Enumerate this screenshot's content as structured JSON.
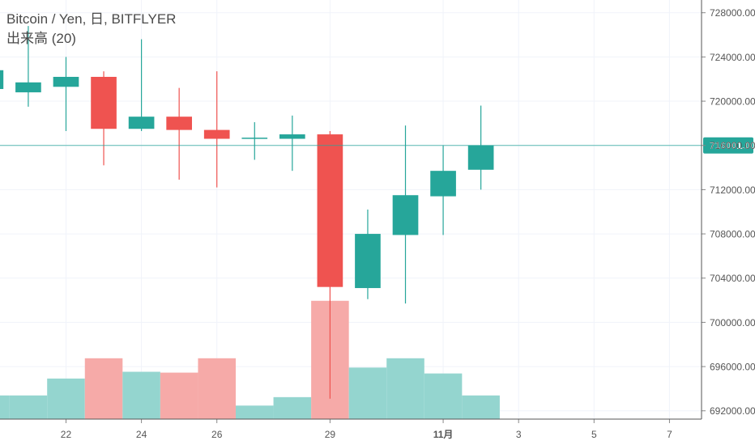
{
  "legend": {
    "symbol_line": "Bitcoin / Yen, 日, BITFLYER",
    "volume_line": "出来高 (20)"
  },
  "colors": {
    "up": "#26a69a",
    "down": "#ef5350",
    "up_volume": "#94d5cf",
    "down_volume": "#f6aaa8",
    "last_price": "#26a69a",
    "grid": "#f0f3fa",
    "axis_text": "#555555"
  },
  "chart_data": {
    "type": "candlestick",
    "title": "Bitcoin / Yen, 日, BITFLYER",
    "x_ticks": [
      {
        "day": 22,
        "label": "22"
      },
      {
        "day": 24,
        "label": "24"
      },
      {
        "day": 26,
        "label": "26"
      },
      {
        "day": 29,
        "label": "29"
      },
      {
        "day": 32,
        "label": "11月"
      },
      {
        "day": 34,
        "label": "3"
      },
      {
        "day": 36,
        "label": "5"
      },
      {
        "day": 38,
        "label": "7"
      }
    ],
    "y_ticks": [
      "728000.00",
      "724000.00",
      "720000.00",
      "716000.00",
      "712000.00",
      "708000.00",
      "704000.00",
      "700000.00",
      "696000.00",
      "692000.00"
    ],
    "y_range": [
      691250,
      729150
    ],
    "x_range": [
      20.25,
      38.85
    ],
    "last_price": {
      "value": 716001,
      "label": "716001.00"
    },
    "candles": [
      {
        "day": 20,
        "open": 721100,
        "high": 723800,
        "low": 716200,
        "close": 722800
      },
      {
        "day": 21,
        "open": 720800,
        "high": 726800,
        "low": 719500,
        "close": 721700
      },
      {
        "day": 22,
        "open": 721300,
        "high": 724000,
        "low": 717300,
        "close": 722200
      },
      {
        "day": 23,
        "open": 722200,
        "high": 722700,
        "low": 714200,
        "close": 717500
      },
      {
        "day": 24,
        "open": 717500,
        "high": 725600,
        "low": 717300,
        "close": 718600
      },
      {
        "day": 25,
        "open": 718600,
        "high": 721200,
        "low": 712900,
        "close": 717400
      },
      {
        "day": 26,
        "open": 717400,
        "high": 722700,
        "low": 712200,
        "close": 716600
      },
      {
        "day": 27,
        "open": 716600,
        "high": 718100,
        "low": 714700,
        "close": 716700
      },
      {
        "day": 28,
        "open": 716600,
        "high": 718700,
        "low": 713700,
        "close": 717000
      },
      {
        "day": 29,
        "open": 717000,
        "high": 717300,
        "low": 693100,
        "close": 703200
      },
      {
        "day": 30,
        "open": 703100,
        "high": 710200,
        "low": 702100,
        "close": 708000
      },
      {
        "day": 31,
        "open": 707900,
        "high": 717800,
        "low": 701700,
        "close": 711500
      },
      {
        "day": 32,
        "open": 711400,
        "high": 716000,
        "low": 707900,
        "close": 713700
      },
      {
        "day": 33,
        "open": 713800,
        "high": 719600,
        "low": 712000,
        "close": 716000
      }
    ],
    "volume": [
      {
        "day": 20,
        "value": 2.8,
        "dir": "up"
      },
      {
        "day": 21,
        "value": 2.8,
        "dir": "up"
      },
      {
        "day": 22,
        "value": 4.8,
        "dir": "up"
      },
      {
        "day": 23,
        "value": 7.2,
        "dir": "down"
      },
      {
        "day": 24,
        "value": 5.6,
        "dir": "up"
      },
      {
        "day": 25,
        "value": 5.5,
        "dir": "down"
      },
      {
        "day": 26,
        "value": 7.2,
        "dir": "down"
      },
      {
        "day": 27,
        "value": 1.6,
        "dir": "up"
      },
      {
        "day": 28,
        "value": 2.6,
        "dir": "up"
      },
      {
        "day": 29,
        "value": 14.0,
        "dir": "down"
      },
      {
        "day": 30,
        "value": 6.1,
        "dir": "up"
      },
      {
        "day": 31,
        "value": 7.2,
        "dir": "up"
      },
      {
        "day": 32,
        "value": 5.4,
        "dir": "up"
      },
      {
        "day": 33,
        "value": 2.8,
        "dir": "up"
      }
    ],
    "volume_max": 18
  }
}
